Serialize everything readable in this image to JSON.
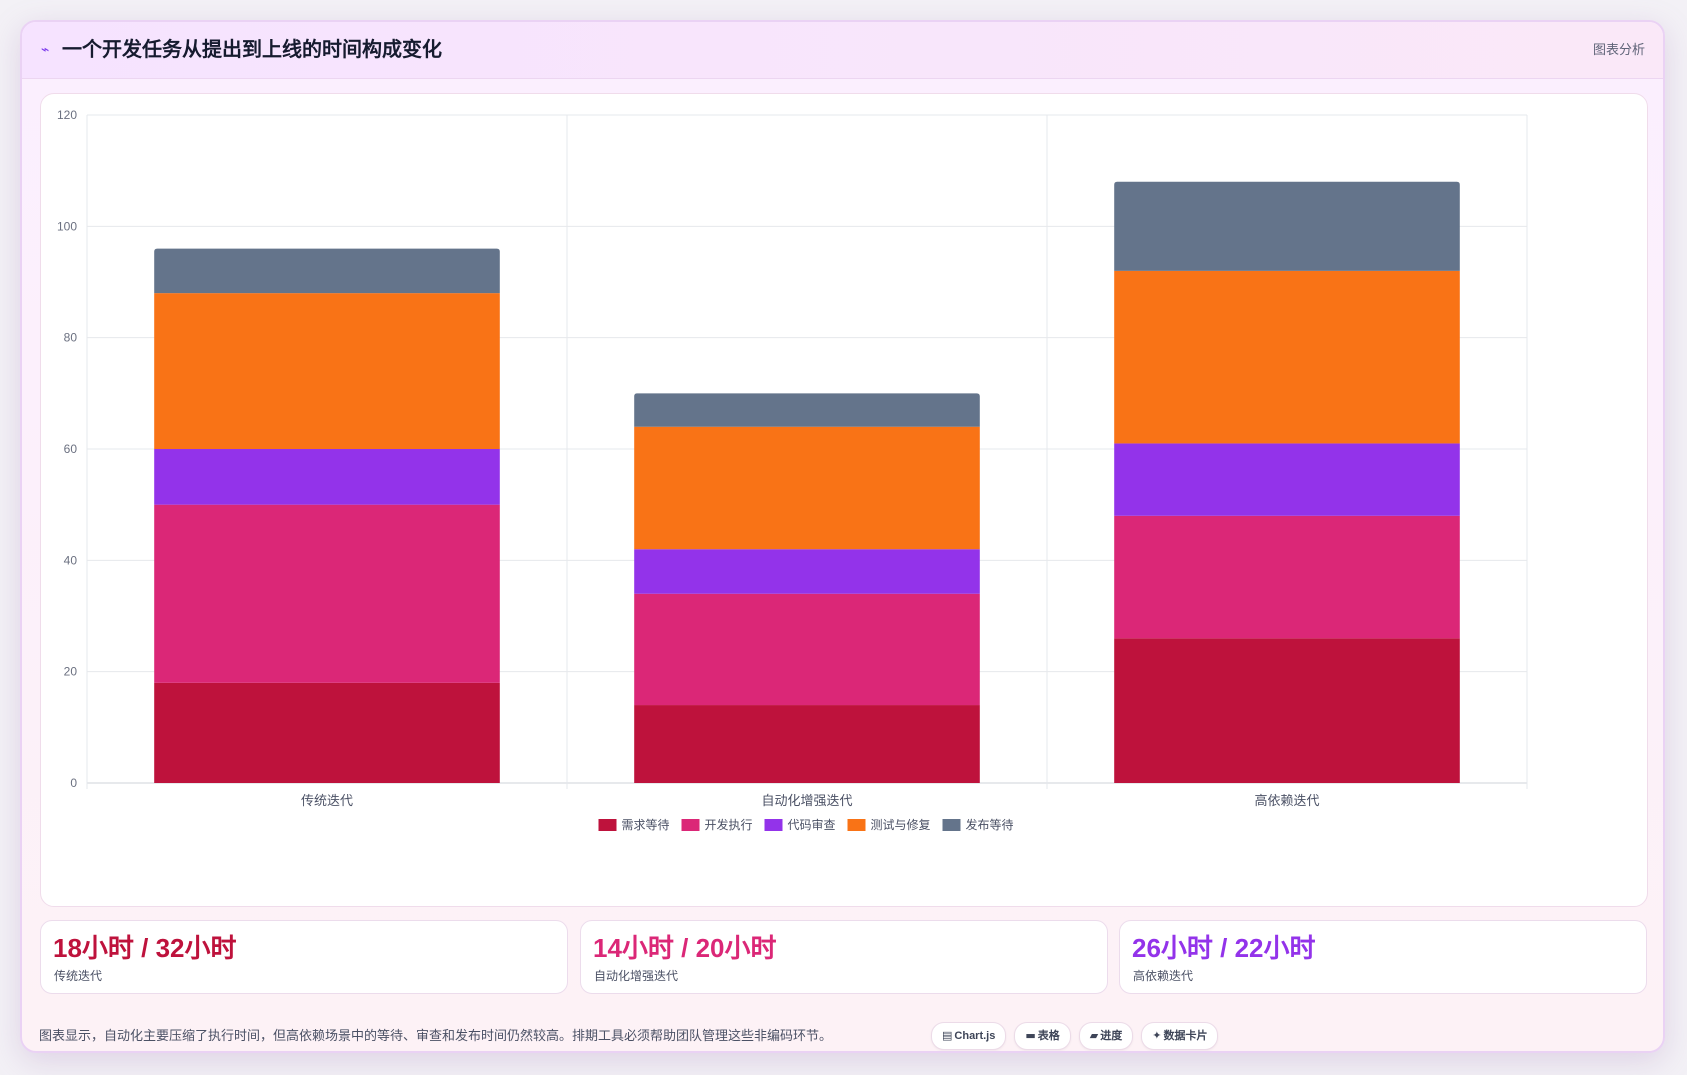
{
  "header": {
    "icon": "pulse-icon",
    "icon_glyph": "⌁",
    "title": "一个开发任务从提出到上线的时间构成变化",
    "tag": "图表分析"
  },
  "chart_data": {
    "type": "bar",
    "stacked": true,
    "title": "",
    "xlabel": "",
    "ylabel": "",
    "ylim": [
      0,
      120
    ],
    "yticks": [
      0,
      20,
      40,
      60,
      80,
      100,
      120
    ],
    "grid": true,
    "legend_position": "bottom",
    "categories": [
      "传统迭代",
      "自动化增强迭代",
      "高依赖迭代"
    ],
    "series": [
      {
        "name": "需求等待",
        "color": "#be123c",
        "values": [
          18,
          14,
          26
        ]
      },
      {
        "name": "开发执行",
        "color": "#db2777",
        "values": [
          32,
          20,
          22
        ]
      },
      {
        "name": "代码审查",
        "color": "#9333ea",
        "values": [
          10,
          8,
          13
        ]
      },
      {
        "name": "测试与修复",
        "color": "#f97316",
        "values": [
          28,
          22,
          31
        ]
      },
      {
        "name": "发布等待",
        "color": "#64748b",
        "values": [
          8,
          6,
          16
        ]
      }
    ]
  },
  "stats": [
    {
      "value": "18小时 / 32小时",
      "label": "传统迭代",
      "color": "#be123c"
    },
    {
      "value": "14小时 / 20小时",
      "label": "自动化增强迭代",
      "color": "#db2777"
    },
    {
      "value": "26小时 / 22小时",
      "label": "高依赖迭代",
      "color": "#9333ea"
    }
  ],
  "footer": {
    "note": "图表显示，自动化主要压缩了执行时间，但高依赖场景中的等待、审查和发布时间仍然较高。排期工具必须帮助团队管理这些非编码环节。",
    "chips": [
      {
        "icon": "chart-icon",
        "glyph": "▤",
        "label": "Chart.js"
      },
      {
        "icon": "table-icon",
        "glyph": "▬",
        "label": "表格"
      },
      {
        "icon": "progress-icon",
        "glyph": "▰",
        "label": "进度"
      },
      {
        "icon": "sparkle-icon",
        "glyph": "✦",
        "label": "数据卡片"
      }
    ]
  }
}
